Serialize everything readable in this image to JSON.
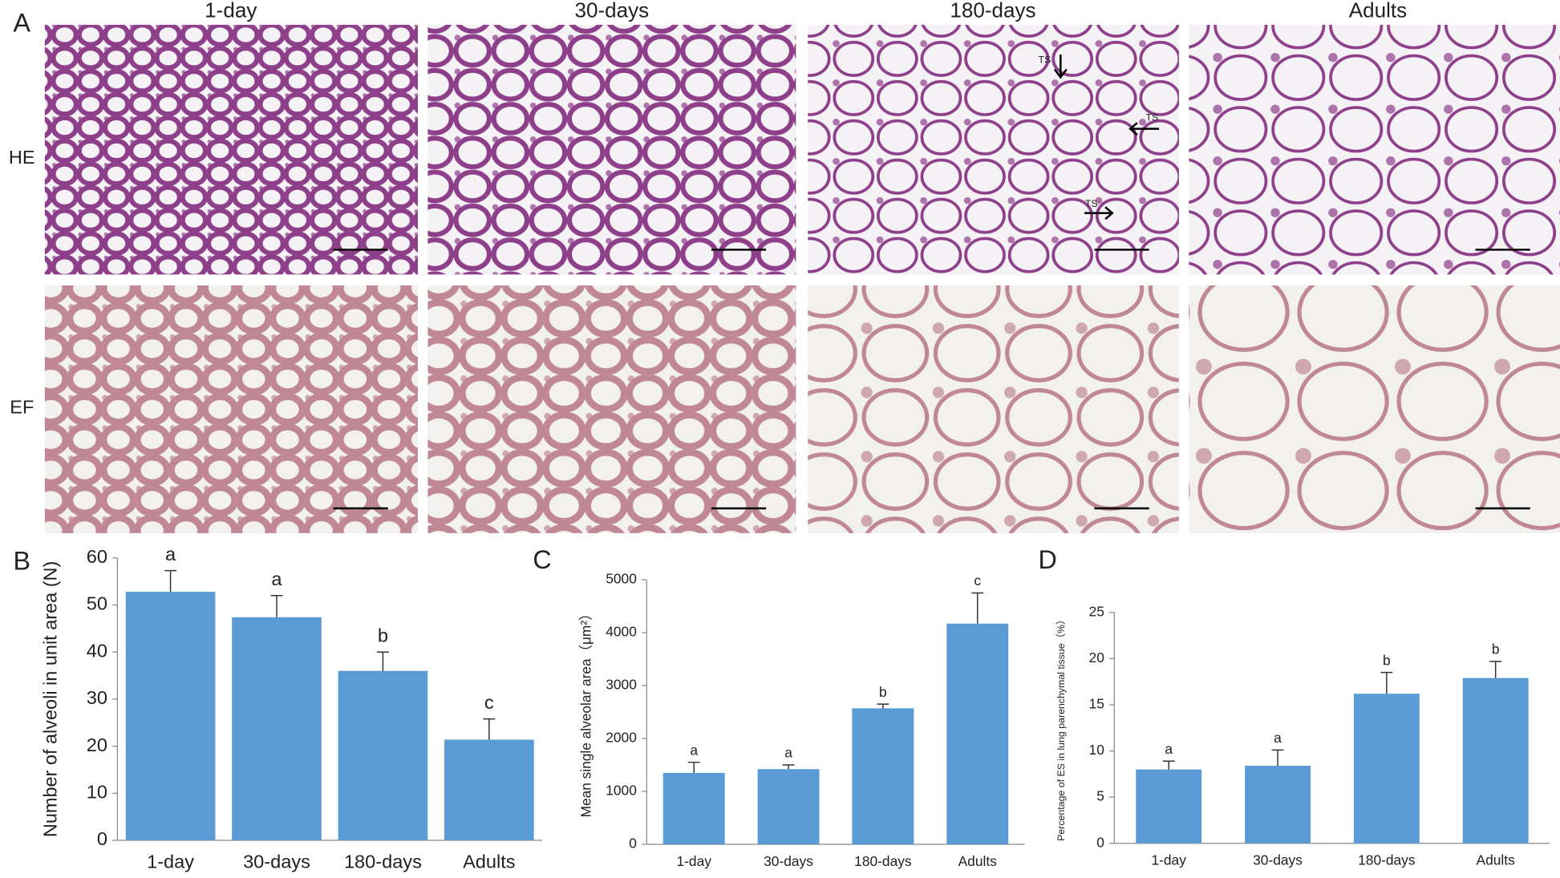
{
  "micrographs": {
    "panel": "A",
    "columns": [
      "1-day",
      "30-days",
      "180-days",
      "Adults"
    ],
    "rows": [
      "HE",
      "EF"
    ],
    "annotations": [
      "TS",
      "TS",
      "TS"
    ]
  },
  "chart_data": [
    {
      "type": "bar",
      "panel": "B",
      "ylabel": "Number of alveoli in unit area (N)",
      "categories": [
        "1-day",
        "30-days",
        "180-days",
        "Adults"
      ],
      "values": [
        52.8,
        47.4,
        36,
        21.4
      ],
      "errors": [
        4.5,
        4.6,
        4,
        4.4
      ],
      "annotations": [
        "a",
        "a",
        "b",
        "c"
      ],
      "color": "#5b9bd5",
      "ylim": [
        0,
        60
      ],
      "yticks": [
        0,
        10,
        20,
        30,
        40,
        50,
        60
      ]
    },
    {
      "type": "bar",
      "panel": "C",
      "ylabel": "Mean single alveolar area（μm²）",
      "categories": [
        "1-day",
        "30-days",
        "180-days",
        "Adults"
      ],
      "values": [
        1350,
        1420,
        2570,
        4170
      ],
      "errors": [
        200,
        80,
        80,
        580
      ],
      "annotations": [
        "a",
        "a",
        "b",
        "c"
      ],
      "color": "#5b9bd5",
      "ylim": [
        0,
        5000
      ],
      "yticks": [
        0,
        1000,
        2000,
        3000,
        4000,
        5000
      ]
    },
    {
      "type": "bar",
      "panel": "D",
      "ylabel": "Percentage of ES in lung parenchymal tissue（%）",
      "categories": [
        "1-day",
        "30-days",
        "180-days",
        "Adults"
      ],
      "values": [
        8.0,
        8.4,
        16.2,
        17.9
      ],
      "errors": [
        0.9,
        1.7,
        2.3,
        1.8
      ],
      "annotations": [
        "a",
        "a",
        "b",
        "b"
      ],
      "color": "#5b9bd5",
      "ylim": [
        0,
        25
      ],
      "yticks": [
        0,
        5,
        10,
        15,
        20,
        25
      ]
    }
  ]
}
